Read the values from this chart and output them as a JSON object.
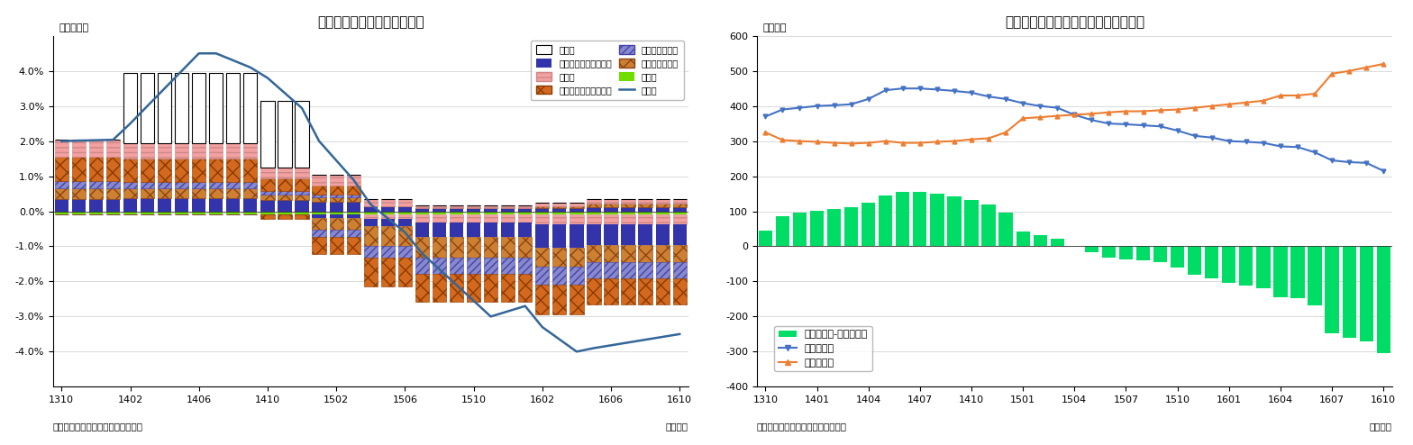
{
  "chart1": {
    "title": "国内企業物価指数の要因分解",
    "ylabel": "（前年比）",
    "xlabel_note": "（資料）日本銀行「企業物価指数」",
    "xlabel_unit": "（月次）",
    "ylim": [
      -5.0,
      5.0
    ],
    "ytick_vals": [
      -4.0,
      -3.0,
      -2.0,
      -1.0,
      0.0,
      1.0,
      2.0,
      3.0,
      4.0
    ],
    "xtick_labels": [
      "1310",
      "1402",
      "1406",
      "1410",
      "1502",
      "1506",
      "1510",
      "1602",
      "1606",
      "1610"
    ]
  },
  "chart2": {
    "title": "国内企業物価指数の上昇・下落品目数",
    "ylabel": "（品目）",
    "xlabel_note": "（資料）日本銀行「企業物価指数」",
    "xlabel_unit": "（月次）",
    "ylim": [
      -400,
      600
    ],
    "ytick_vals": [
      -400,
      -300,
      -200,
      -100,
      0,
      100,
      200,
      300,
      400,
      500,
      600
    ],
    "xtick_labels": [
      "1310",
      "1401",
      "1404",
      "1407",
      "1410",
      "1501",
      "1504",
      "1507",
      "1510",
      "1601",
      "1604",
      "1607",
      "1610"
    ],
    "bar_color": "#00dd66",
    "line1_color": "#4472c4",
    "line2_color": "#ed7d31"
  },
  "colors": {
    "shohizei": "#ffffff",
    "denki": "#3333aa",
    "sonota": "#f4a0a0",
    "kawase": "#d2691e",
    "sozai": "#8888cc",
    "tekko": "#cd7f32",
    "kikai": "#70dd00",
    "soheikun": "#336699"
  }
}
